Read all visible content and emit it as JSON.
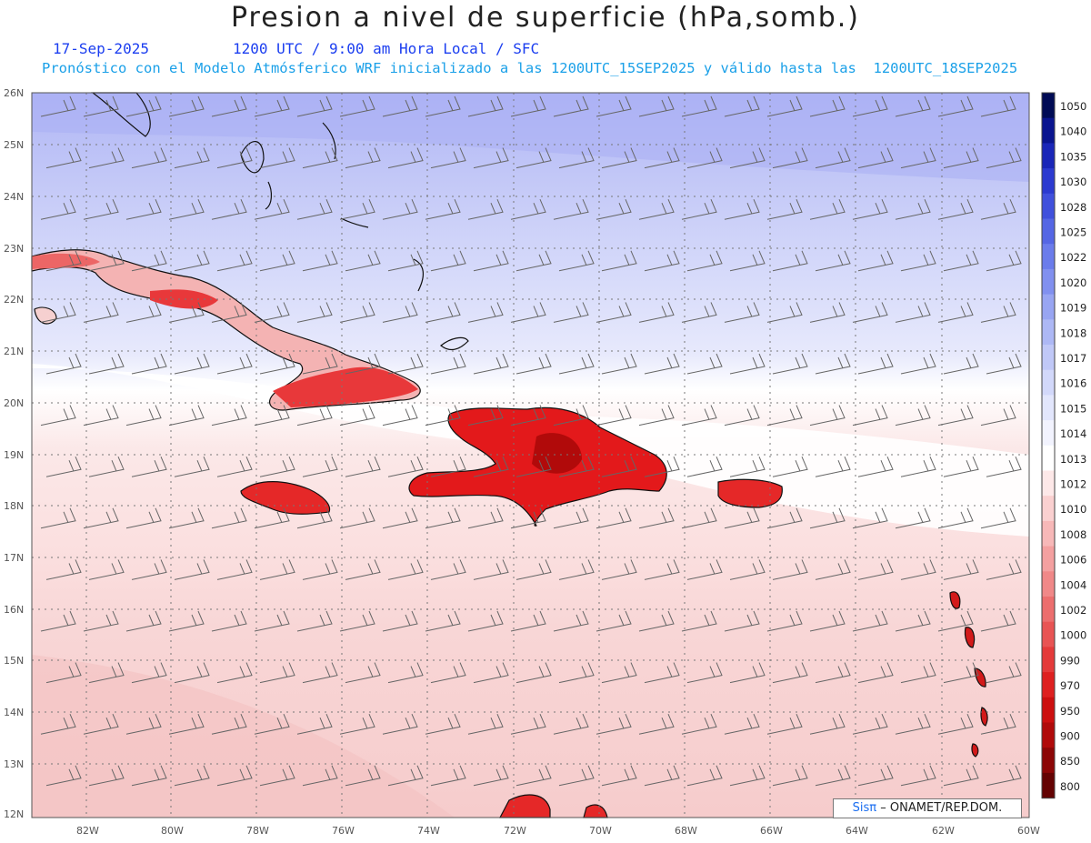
{
  "header": {
    "title": "Presion a nivel de superficie (hPa,somb.)",
    "date": "17-Sep-2025",
    "time": "1200 UTC / 9:00 am Hora Local / SFC",
    "forecast": "Pronóstico con el Modelo Atmósferico WRF inicializado a las 1200UTC_15SEP2025 y válido hasta las  1200UTC_18SEP2025"
  },
  "map": {
    "lat_labels": [
      "26N",
      "25N",
      "24N",
      "23N",
      "22N",
      "21N",
      "20N",
      "19N",
      "18N",
      "17N",
      "16N",
      "15N",
      "14N",
      "13N",
      "12N"
    ],
    "lon_labels": [
      "82W",
      "80W",
      "78W",
      "76W",
      "74W",
      "72W",
      "70W",
      "68W",
      "66W",
      "64W",
      "62W",
      "60W"
    ],
    "regions": [
      "Cuba",
      "Jamaica",
      "Hispaniola",
      "Puerto Rico",
      "Bahamas",
      "Lesser Antilles"
    ]
  },
  "colorbar": {
    "levels": [
      "1050",
      "1040",
      "1035",
      "1030",
      "1028",
      "1025",
      "1022",
      "1020",
      "1019",
      "1018",
      "1017",
      "1016",
      "1015",
      "1014",
      "1013",
      "1012",
      "1010",
      "1008",
      "1006",
      "1004",
      "1002",
      "1000",
      "990",
      "970",
      "950",
      "900",
      "850",
      "800"
    ],
    "colors": [
      "#000b55",
      "#0a1590",
      "#1a26b8",
      "#2c3ad0",
      "#4050dc",
      "#5566e4",
      "#6b7ceb",
      "#8190ef",
      "#98a5f2",
      "#adb8f5",
      "#c0c8f7",
      "#d2d8fa",
      "#e2e6fc",
      "#f2f3fe",
      "#ffffff",
      "#fde8e8",
      "#fad0d0",
      "#f7b8b8",
      "#f4a0a0",
      "#f08888",
      "#ec6e6e",
      "#e85454",
      "#e43a3a",
      "#de2020",
      "#cc0f0f",
      "#b00a0a",
      "#8c0606",
      "#640202"
    ]
  },
  "credit": {
    "logo": "Sisπ",
    "text": "– ONAMET/REP.DOM."
  }
}
